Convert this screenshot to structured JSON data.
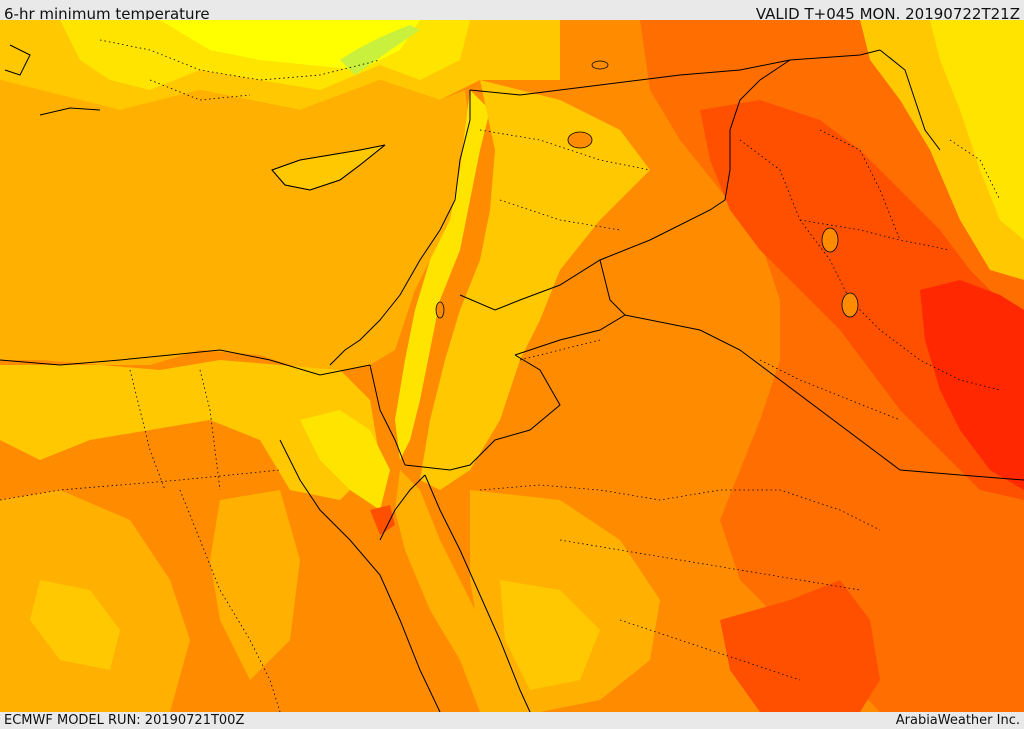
{
  "header": {
    "title": "6-hr minimum temperature",
    "valid": "VALID T+045 MON. 20190722T21Z"
  },
  "footer": {
    "model_run": "ECMWF MODEL RUN: 20190721T00Z",
    "credit": "ArabiaWeather Inc."
  },
  "colors": {
    "greenish": "#c8f03c",
    "yellow": "#ffff00",
    "pale_yellow": "#ffe400",
    "light_orange": "#ffc800",
    "orange_sea": "#ffb000",
    "orange": "#ff8c00",
    "dark_orange": "#ff6e00",
    "red_orange": "#ff5000",
    "red": "#ff2800",
    "border_line": "#000000"
  },
  "map": {
    "region": "Eastern Mediterranean and Middle East",
    "field": "6-hr minimum temperature"
  }
}
